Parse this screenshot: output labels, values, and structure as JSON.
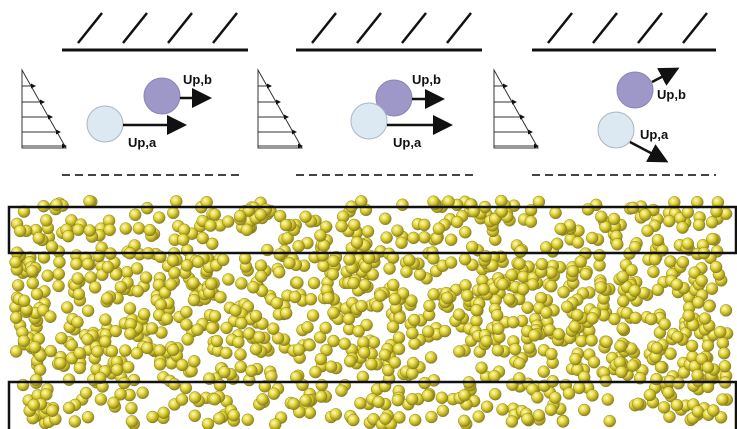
{
  "panels": [
    {
      "id": "panel-1",
      "label_a": "Up,a",
      "label_b": "Up,b"
    },
    {
      "id": "panel-2",
      "label_a": "Up,a",
      "label_b": "Up,b"
    },
    {
      "id": "panel-3",
      "label_a": "Up,a",
      "label_b": "Up,b"
    }
  ],
  "colors": {
    "particle_a": "#dce8f2",
    "particle_b": "#9e98c8",
    "sphere_fill": "#e3d63a",
    "sphere_stroke": "#7d7420",
    "line": "#111111"
  }
}
